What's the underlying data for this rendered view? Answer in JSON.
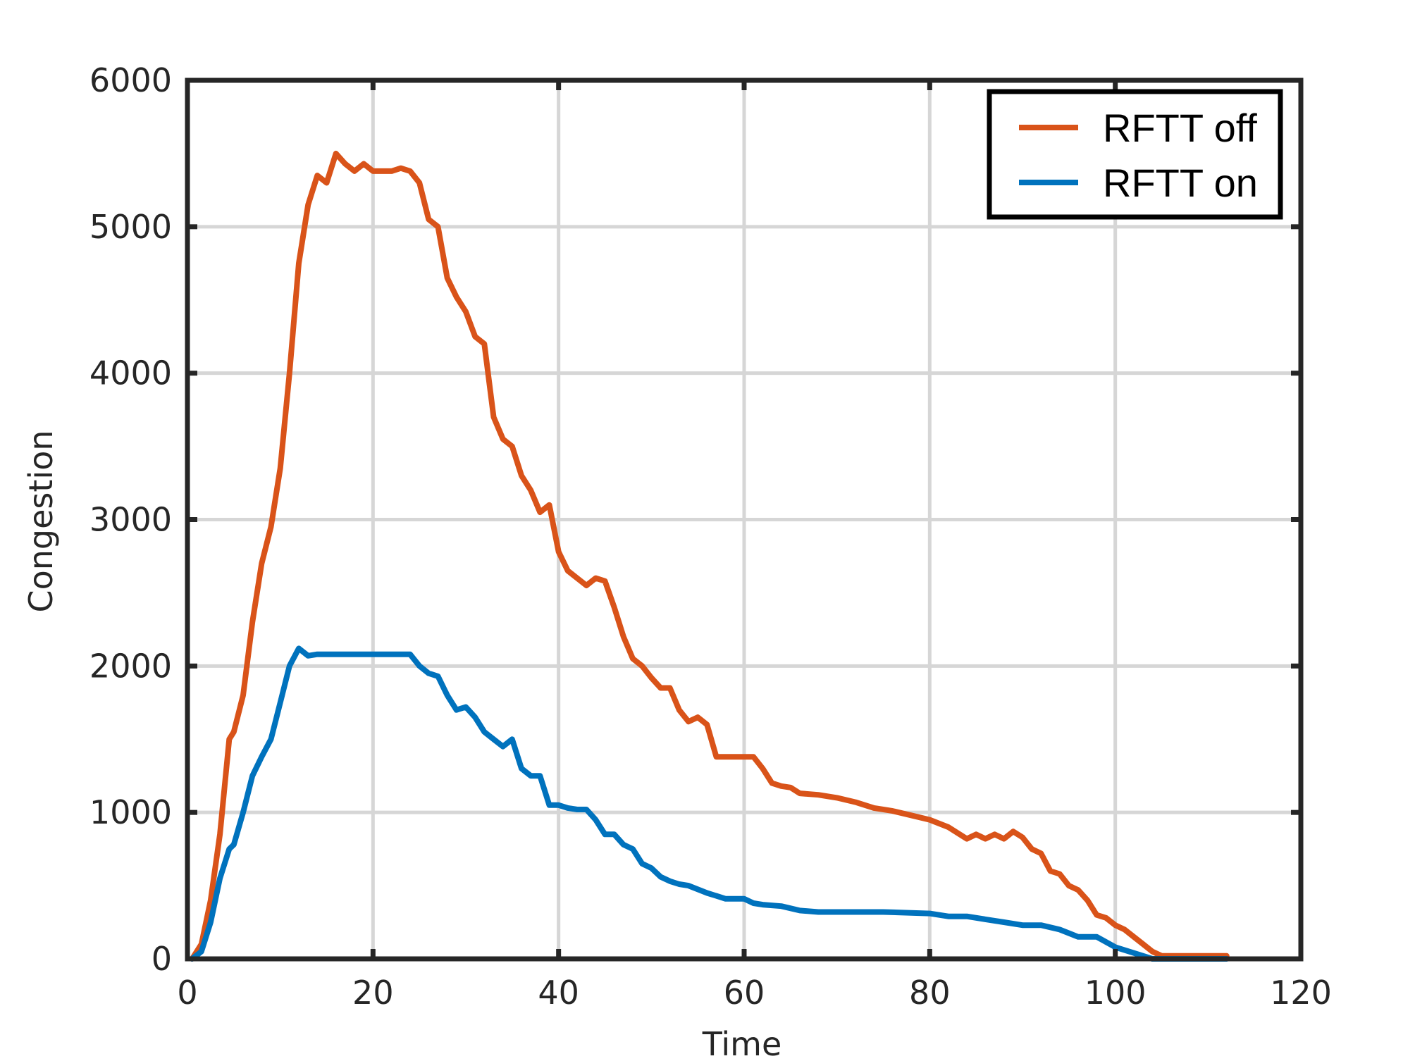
{
  "chart_data": {
    "type": "line",
    "title": "",
    "xlabel": "Time",
    "ylabel": "Congestion",
    "xlim": [
      0,
      120
    ],
    "ylim": [
      0,
      6000
    ],
    "xticks": [
      0,
      20,
      40,
      60,
      80,
      100,
      120
    ],
    "yticks": [
      0,
      1000,
      2000,
      3000,
      4000,
      5000,
      6000
    ],
    "x_tick_labels": [
      "0",
      "20",
      "40",
      "60",
      "80",
      "100",
      "120"
    ],
    "y_tick_labels": [
      "0",
      "1000",
      "2000",
      "3000",
      "4000",
      "5000",
      "6000"
    ],
    "grid": true,
    "legend_position": "top-right",
    "series": [
      {
        "name": "RFTT off",
        "color": "#d95319",
        "x": [
          0.5,
          1.5,
          2.5,
          3.5,
          4.5,
          5,
          6,
          7,
          8,
          9,
          10,
          11,
          12,
          13,
          14,
          15,
          16,
          17,
          18,
          19,
          20,
          22,
          23,
          24,
          25,
          26,
          27,
          28,
          29,
          30,
          31,
          32,
          33,
          34,
          35,
          36,
          37,
          38,
          39,
          40,
          41,
          42,
          43,
          44,
          45,
          46,
          47,
          48,
          49,
          50,
          51,
          52,
          53,
          54,
          55,
          56,
          57,
          58,
          59,
          60,
          61,
          62,
          63,
          64,
          65,
          66,
          68,
          70,
          72,
          74,
          76,
          78,
          80,
          82,
          84,
          85,
          86,
          87,
          88,
          89,
          90,
          91,
          92,
          93,
          94,
          95,
          96,
          97,
          98,
          99,
          100,
          101,
          102,
          103,
          104,
          105,
          106,
          108,
          110,
          112
        ],
        "values": [
          0,
          100,
          400,
          850,
          1500,
          1550,
          1800,
          2300,
          2700,
          2950,
          3350,
          4000,
          4750,
          5150,
          5350,
          5300,
          5500,
          5430,
          5380,
          5430,
          5380,
          5380,
          5400,
          5380,
          5300,
          5050,
          5000,
          4650,
          4520,
          4420,
          4250,
          4200,
          3700,
          3550,
          3500,
          3300,
          3200,
          3050,
          3100,
          2780,
          2650,
          2600,
          2550,
          2600,
          2580,
          2400,
          2200,
          2050,
          2000,
          1920,
          1850,
          1850,
          1700,
          1620,
          1650,
          1600,
          1380,
          1380,
          1380,
          1380,
          1380,
          1300,
          1200,
          1180,
          1170,
          1130,
          1120,
          1100,
          1070,
          1030,
          1010,
          980,
          950,
          900,
          820,
          850,
          820,
          850,
          820,
          870,
          830,
          750,
          720,
          600,
          580,
          500,
          470,
          400,
          300,
          280,
          230,
          200,
          150,
          100,
          50,
          20,
          20,
          20,
          20,
          20
        ]
      },
      {
        "name": "RFTT on",
        "color": "#0072bd",
        "x": [
          0.5,
          1.5,
          2.5,
          3.5,
          4.5,
          5,
          6,
          7,
          8,
          9,
          10,
          11,
          12,
          13,
          14,
          15,
          16,
          18,
          20,
          22,
          24,
          25,
          26,
          27,
          28,
          29,
          30,
          31,
          32,
          33,
          34,
          35,
          36,
          37,
          38,
          39,
          40,
          41,
          42,
          43,
          44,
          45,
          46,
          47,
          48,
          49,
          50,
          51,
          52,
          53,
          54,
          56,
          57,
          58,
          60,
          61,
          62,
          64,
          66,
          68,
          70,
          75,
          80,
          82,
          84,
          86,
          88,
          90,
          92,
          94,
          96,
          98,
          100,
          102,
          104,
          106,
          108,
          110,
          112
        ],
        "values": [
          0,
          50,
          250,
          550,
          750,
          780,
          1000,
          1250,
          1380,
          1500,
          1750,
          2000,
          2120,
          2070,
          2080,
          2080,
          2080,
          2080,
          2080,
          2080,
          2080,
          2000,
          1950,
          1930,
          1800,
          1700,
          1720,
          1650,
          1550,
          1500,
          1450,
          1500,
          1300,
          1250,
          1250,
          1050,
          1050,
          1030,
          1020,
          1020,
          950,
          850,
          850,
          780,
          750,
          650,
          620,
          560,
          530,
          510,
          500,
          450,
          430,
          410,
          410,
          380,
          370,
          360,
          330,
          320,
          320,
          320,
          310,
          290,
          290,
          270,
          250,
          230,
          230,
          200,
          150,
          150,
          80,
          40,
          0,
          0,
          0,
          0,
          0
        ]
      }
    ]
  }
}
